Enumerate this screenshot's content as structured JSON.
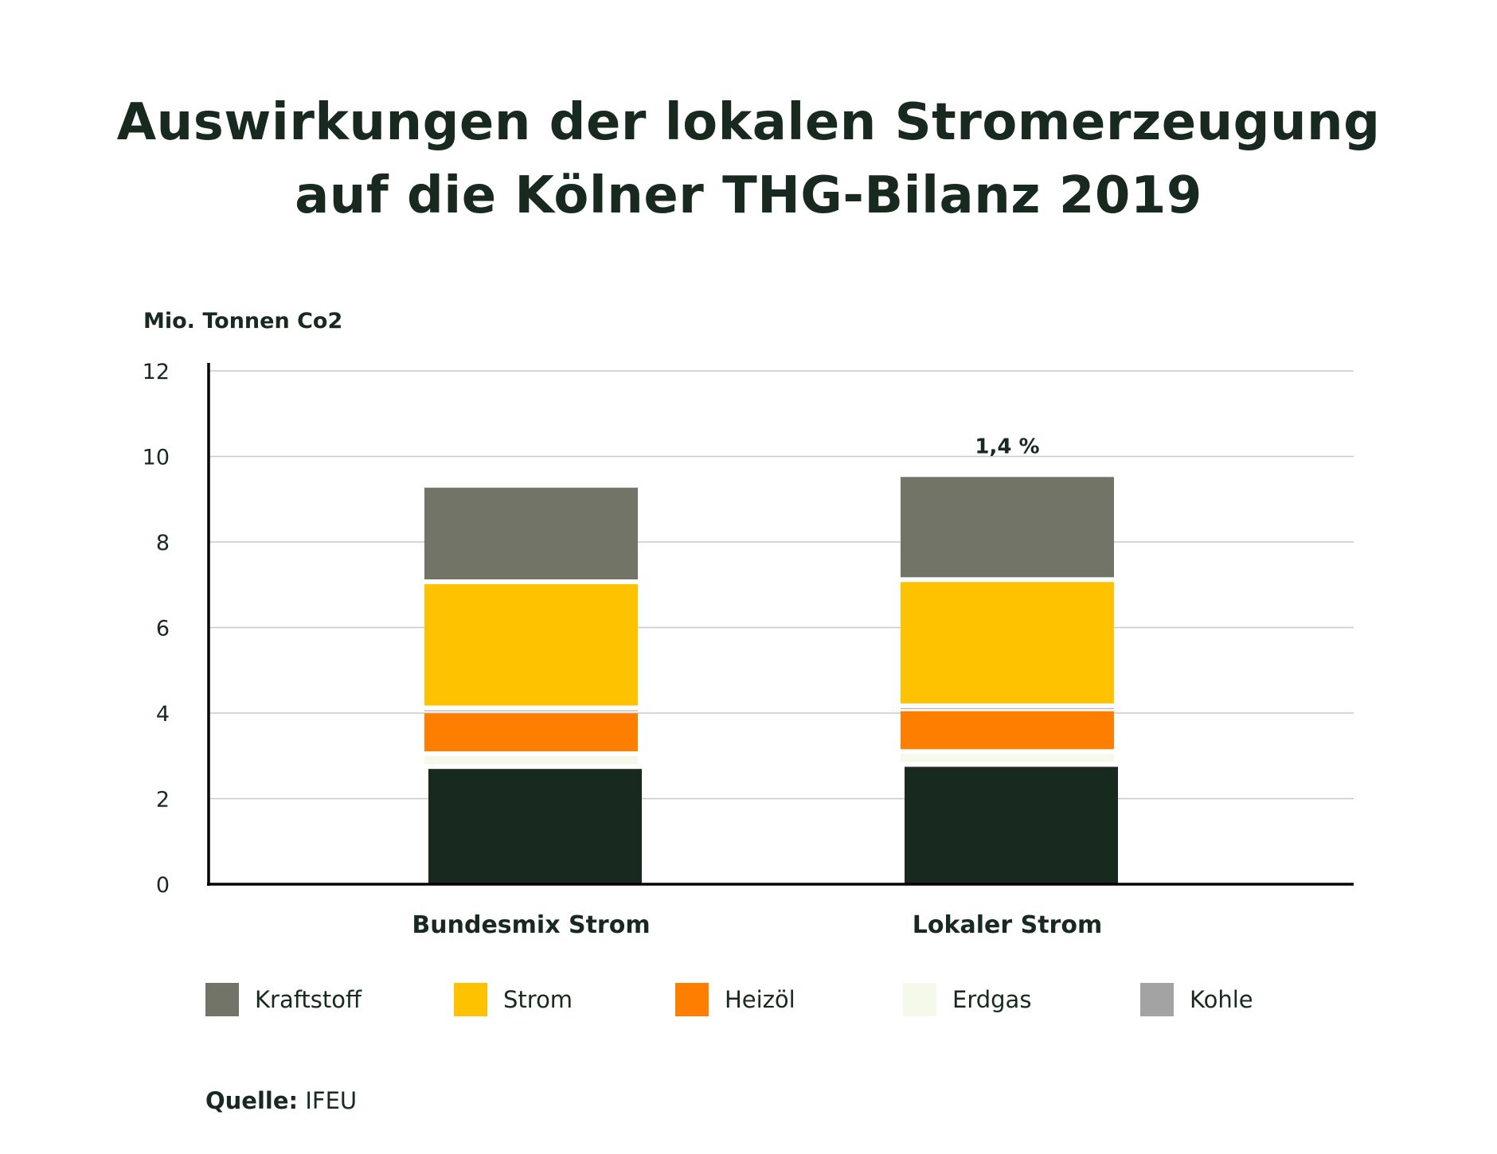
{
  "header": {
    "title_line1": "Auswirkungen der lokalen Stromerzeugung",
    "title_line2": "auf die Kölner THG-Bilanz 2019"
  },
  "source": {
    "label": "Quelle:",
    "value": "IFEU"
  },
  "colors": {
    "Kraftstoff": "#717467",
    "Strom": "#fec200",
    "Heizöl": "#fe7f00",
    "Erdgas": "#f5f9e9",
    "Kohle": "#a3a3a3",
    "Rest": "#182920",
    "text": "#182920",
    "grid": "#c8c8c8"
  },
  "chart_data": {
    "type": "bar",
    "stacked": true,
    "ylabel": "Mio. Tonnen Co2",
    "xlabel": "",
    "ylim": [
      0,
      12
    ],
    "yticks": [
      "0",
      "2",
      "4",
      "6",
      "8",
      "10",
      "12"
    ],
    "grid": true,
    "legend_position": "bottom",
    "categories": [
      "Bundesmix Strom",
      "Lokaler Strom"
    ],
    "series": [
      {
        "values": [
          2.75,
          2.8
        ]
      },
      {
        "name": "Erdgas",
        "values": [
          0.3,
          0.3
        ]
      },
      {
        "name": "Heizöl",
        "values": [
          1.0,
          1.0
        ]
      },
      {
        "name": "Kohle",
        "values": [
          0.07,
          0.07
        ]
      },
      {
        "name": "Strom",
        "values": [
          2.95,
          2.95
        ]
      },
      {
        "name": "Kraftstoff",
        "values": [
          2.2,
          2.4
        ]
      }
    ],
    "legend": [
      "Kraftstoff",
      "Strom",
      "Heizöl",
      "Erdgas",
      "Kohle"
    ],
    "annotations": [
      {
        "category": "Lokaler Strom",
        "text": "1,4 %"
      }
    ]
  }
}
